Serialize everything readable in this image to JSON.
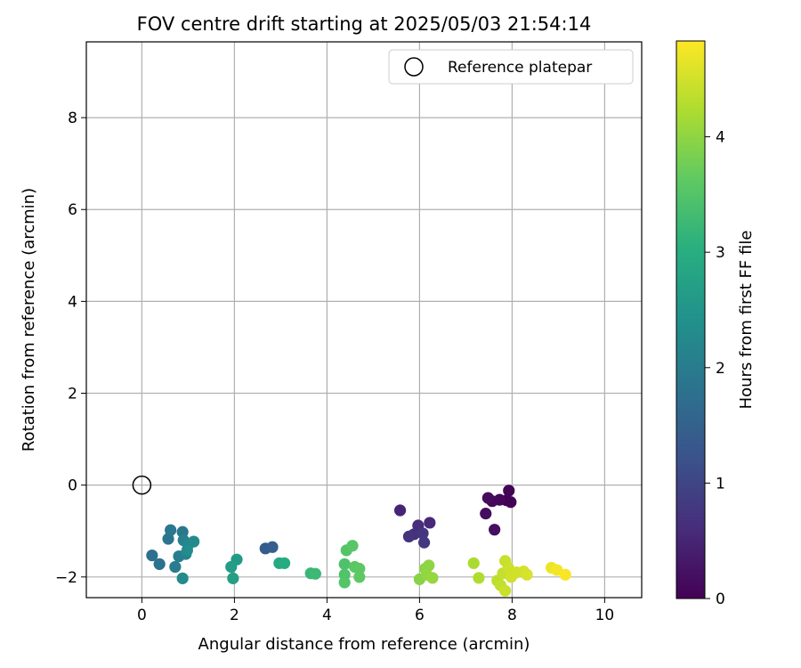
{
  "chart_data": {
    "type": "scatter",
    "title": "FOV centre drift starting at 2025/05/03 21:54:14",
    "xlabel": "Angular distance from reference (arcmin)",
    "ylabel": "Rotation from reference (arcmin)",
    "xlim": [
      -1.2,
      10.8
    ],
    "ylim": [
      -2.45,
      9.65
    ],
    "xticks": [
      0,
      2,
      4,
      6,
      8,
      10
    ],
    "yticks": [
      -2,
      0,
      2,
      4,
      6,
      8
    ],
    "grid": true,
    "legend": {
      "position": "top-right",
      "label": "Reference platepar"
    },
    "reference_point": {
      "x": 0,
      "y": 0
    },
    "colorbar": {
      "label": "Hours from first FF file",
      "colormap": "viridis",
      "range": [
        0,
        4.83
      ],
      "ticks": [
        0,
        1,
        2,
        3,
        4
      ]
    },
    "points": [
      {
        "x": 7.88,
        "y": -0.33,
        "c": 0.0
      },
      {
        "x": 7.97,
        "y": -0.37,
        "c": 0.02
      },
      {
        "x": 7.93,
        "y": -0.12,
        "c": 0.05
      },
      {
        "x": 7.73,
        "y": -0.32,
        "c": 0.08
      },
      {
        "x": 7.57,
        "y": -0.35,
        "c": 0.11
      },
      {
        "x": 7.48,
        "y": -0.28,
        "c": 0.14
      },
      {
        "x": 7.43,
        "y": -0.62,
        "c": 0.17
      },
      {
        "x": 7.62,
        "y": -0.97,
        "c": 0.2
      },
      {
        "x": 5.58,
        "y": -0.55,
        "c": 0.5
      },
      {
        "x": 6.22,
        "y": -0.82,
        "c": 0.55
      },
      {
        "x": 5.97,
        "y": -0.88,
        "c": 0.6
      },
      {
        "x": 5.88,
        "y": -1.07,
        "c": 0.65
      },
      {
        "x": 5.77,
        "y": -1.12,
        "c": 0.7
      },
      {
        "x": 6.07,
        "y": -1.05,
        "c": 0.75
      },
      {
        "x": 6.1,
        "y": -1.25,
        "c": 0.8
      },
      {
        "x": 2.67,
        "y": -1.38,
        "c": 1.4
      },
      {
        "x": 2.82,
        "y": -1.35,
        "c": 1.45
      },
      {
        "x": 0.22,
        "y": -1.53,
        "c": 1.75
      },
      {
        "x": 0.38,
        "y": -1.72,
        "c": 1.8
      },
      {
        "x": 0.57,
        "y": -1.17,
        "c": 1.85
      },
      {
        "x": 0.62,
        "y": -0.98,
        "c": 1.9
      },
      {
        "x": 0.88,
        "y": -1.02,
        "c": 1.95
      },
      {
        "x": 0.72,
        "y": -1.78,
        "c": 2.0
      },
      {
        "x": 0.8,
        "y": -1.55,
        "c": 2.05
      },
      {
        "x": 0.9,
        "y": -1.2,
        "c": 2.1
      },
      {
        "x": 0.95,
        "y": -1.5,
        "c": 2.15
      },
      {
        "x": 1.0,
        "y": -1.3,
        "c": 2.2
      },
      {
        "x": 1.12,
        "y": -1.23,
        "c": 2.25
      },
      {
        "x": 0.88,
        "y": -2.03,
        "c": 2.3
      },
      {
        "x": 0.98,
        "y": -1.42,
        "c": 2.32
      },
      {
        "x": 2.05,
        "y": -1.62,
        "c": 2.6
      },
      {
        "x": 1.93,
        "y": -1.78,
        "c": 2.65
      },
      {
        "x": 1.97,
        "y": -2.03,
        "c": 2.7
      },
      {
        "x": 2.97,
        "y": -1.7,
        "c": 2.9
      },
      {
        "x": 3.08,
        "y": -1.7,
        "c": 2.95
      },
      {
        "x": 3.65,
        "y": -1.92,
        "c": 3.2
      },
      {
        "x": 3.75,
        "y": -1.93,
        "c": 3.25
      },
      {
        "x": 4.38,
        "y": -1.72,
        "c": 3.45
      },
      {
        "x": 4.38,
        "y": -1.95,
        "c": 3.48
      },
      {
        "x": 4.38,
        "y": -2.12,
        "c": 3.5
      },
      {
        "x": 4.42,
        "y": -1.42,
        "c": 3.52
      },
      {
        "x": 4.55,
        "y": -1.32,
        "c": 3.55
      },
      {
        "x": 4.6,
        "y": -1.78,
        "c": 3.58
      },
      {
        "x": 4.7,
        "y": -1.82,
        "c": 3.6
      },
      {
        "x": 4.7,
        "y": -2.0,
        "c": 3.62
      },
      {
        "x": 6.0,
        "y": -2.05,
        "c": 3.95
      },
      {
        "x": 6.12,
        "y": -1.82,
        "c": 3.98
      },
      {
        "x": 6.2,
        "y": -1.75,
        "c": 4.0
      },
      {
        "x": 6.15,
        "y": -1.95,
        "c": 4.02
      },
      {
        "x": 6.28,
        "y": -2.02,
        "c": 4.05
      },
      {
        "x": 7.17,
        "y": -1.7,
        "c": 4.2
      },
      {
        "x": 7.28,
        "y": -2.02,
        "c": 4.25
      },
      {
        "x": 7.68,
        "y": -2.08,
        "c": 4.35
      },
      {
        "x": 7.75,
        "y": -2.18,
        "c": 4.38
      },
      {
        "x": 7.8,
        "y": -1.92,
        "c": 4.4
      },
      {
        "x": 7.85,
        "y": -1.65,
        "c": 4.42
      },
      {
        "x": 7.85,
        "y": -2.3,
        "c": 4.44
      },
      {
        "x": 7.92,
        "y": -1.8,
        "c": 4.46
      },
      {
        "x": 7.98,
        "y": -2.0,
        "c": 4.48
      },
      {
        "x": 8.1,
        "y": -1.9,
        "c": 4.5
      },
      {
        "x": 8.25,
        "y": -1.88,
        "c": 4.52
      },
      {
        "x": 8.32,
        "y": -1.95,
        "c": 4.54
      },
      {
        "x": 8.85,
        "y": -1.8,
        "c": 4.7
      },
      {
        "x": 8.97,
        "y": -1.85,
        "c": 4.75
      },
      {
        "x": 9.15,
        "y": -1.95,
        "c": 4.8
      }
    ]
  }
}
